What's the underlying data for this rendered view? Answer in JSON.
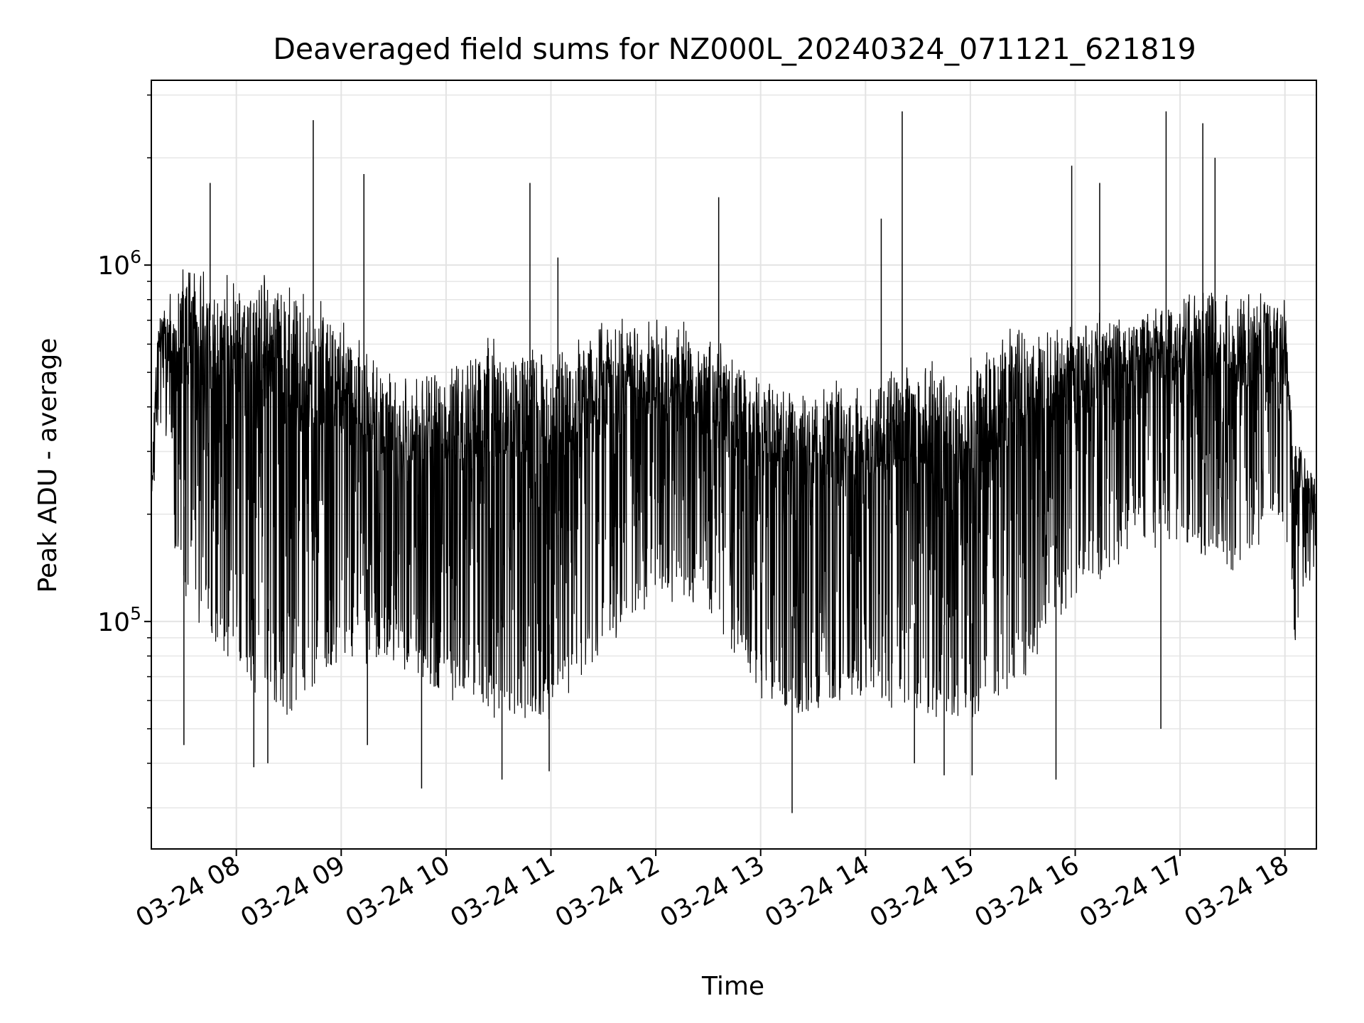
{
  "chart_data": {
    "type": "line",
    "title": "Deaveraged field sums for NZ000L_20240324_071121_621819",
    "xlabel": "Time",
    "ylabel": "Peak ADU - average",
    "yscale": "log",
    "ylim": [
      23000,
      3300000
    ],
    "xlim": [
      "2024-03-24T07:11:21",
      "2024-03-24T18:18:00"
    ],
    "grid": true,
    "x_ticks": [
      {
        "value": "2024-03-24T08:00:00",
        "label": "03-24 08"
      },
      {
        "value": "2024-03-24T09:00:00",
        "label": "03-24 09"
      },
      {
        "value": "2024-03-24T10:00:00",
        "label": "03-24 10"
      },
      {
        "value": "2024-03-24T11:00:00",
        "label": "03-24 11"
      },
      {
        "value": "2024-03-24T12:00:00",
        "label": "03-24 12"
      },
      {
        "value": "2024-03-24T13:00:00",
        "label": "03-24 13"
      },
      {
        "value": "2024-03-24T14:00:00",
        "label": "03-24 14"
      },
      {
        "value": "2024-03-24T15:00:00",
        "label": "03-24 15"
      },
      {
        "value": "2024-03-24T16:00:00",
        "label": "03-24 16"
      },
      {
        "value": "2024-03-24T17:00:00",
        "label": "03-24 17"
      },
      {
        "value": "2024-03-24T18:00:00",
        "label": "03-24 18"
      }
    ],
    "y_ticks": [
      {
        "value": 100000,
        "base": "10",
        "exp": "5"
      },
      {
        "value": 1000000,
        "base": "10",
        "exp": "6"
      }
    ],
    "series": [
      {
        "color": "#000000",
        "style": "dense noisy signal, approx values",
        "upper_envelope": [
          [
            "2024-03-24T07:11:21",
            220000
          ],
          [
            "2024-03-24T07:15:00",
            700000
          ],
          [
            "2024-03-24T07:30:00",
            900000
          ],
          [
            "2024-03-24T08:00:00",
            850000
          ],
          [
            "2024-03-24T08:30:00",
            850000
          ],
          [
            "2024-03-24T09:00:00",
            650000
          ],
          [
            "2024-03-24T09:30:00",
            450000
          ],
          [
            "2024-03-24T10:00:00",
            500000
          ],
          [
            "2024-03-24T10:30:00",
            600000
          ],
          [
            "2024-03-24T11:00:00",
            550000
          ],
          [
            "2024-03-24T11:30:00",
            650000
          ],
          [
            "2024-03-24T12:00:00",
            650000
          ],
          [
            "2024-03-24T12:30:00",
            600000
          ],
          [
            "2024-03-24T13:00:00",
            450000
          ],
          [
            "2024-03-24T13:30:00",
            420000
          ],
          [
            "2024-03-24T14:00:00",
            450000
          ],
          [
            "2024-03-24T14:30:00",
            500000
          ],
          [
            "2024-03-24T15:00:00",
            500000
          ],
          [
            "2024-03-24T15:30:00",
            650000
          ],
          [
            "2024-03-24T16:00:00",
            650000
          ],
          [
            "2024-03-24T16:30:00",
            700000
          ],
          [
            "2024-03-24T17:00:00",
            750000
          ],
          [
            "2024-03-24T17:30:00",
            800000
          ],
          [
            "2024-03-24T18:00:00",
            750000
          ],
          [
            "2024-03-24T18:05:00",
            300000
          ],
          [
            "2024-03-24T18:18:00",
            250000
          ]
        ],
        "lower_envelope": [
          [
            "2024-03-24T07:11:21",
            200000
          ],
          [
            "2024-03-24T07:15:00",
            400000
          ],
          [
            "2024-03-24T07:30:00",
            150000
          ],
          [
            "2024-03-24T08:00:00",
            90000
          ],
          [
            "2024-03-24T08:30:00",
            70000
          ],
          [
            "2024-03-24T09:00:00",
            100000
          ],
          [
            "2024-03-24T09:30:00",
            100000
          ],
          [
            "2024-03-24T10:00:00",
            80000
          ],
          [
            "2024-03-24T10:30:00",
            70000
          ],
          [
            "2024-03-24T11:00:00",
            70000
          ],
          [
            "2024-03-24T11:30:00",
            110000
          ],
          [
            "2024-03-24T12:00:00",
            150000
          ],
          [
            "2024-03-24T12:30:00",
            140000
          ],
          [
            "2024-03-24T13:00:00",
            80000
          ],
          [
            "2024-03-24T13:30:00",
            70000
          ],
          [
            "2024-03-24T14:00:00",
            80000
          ],
          [
            "2024-03-24T14:30:00",
            70000
          ],
          [
            "2024-03-24T15:00:00",
            70000
          ],
          [
            "2024-03-24T15:30:00",
            90000
          ],
          [
            "2024-03-24T16:00:00",
            150000
          ],
          [
            "2024-03-24T16:30:00",
            200000
          ],
          [
            "2024-03-24T17:00:00",
            220000
          ],
          [
            "2024-03-24T17:30:00",
            170000
          ],
          [
            "2024-03-24T18:00:00",
            250000
          ],
          [
            "2024-03-24T18:05:00",
            110000
          ],
          [
            "2024-03-24T18:18:00",
            200000
          ]
        ],
        "spikes_up": [
          [
            "2024-03-24T07:45:00",
            1700000
          ],
          [
            "2024-03-24T08:44:00",
            2550000
          ],
          [
            "2024-03-24T09:13:00",
            1800000
          ],
          [
            "2024-03-24T10:48:00",
            1700000
          ],
          [
            "2024-03-24T11:04:00",
            1050000
          ],
          [
            "2024-03-24T12:36:00",
            1550000
          ],
          [
            "2024-03-24T14:21:00",
            2700000
          ],
          [
            "2024-03-24T14:09:00",
            1350000
          ],
          [
            "2024-03-24T15:58:00",
            1900000
          ],
          [
            "2024-03-24T16:14:00",
            1700000
          ],
          [
            "2024-03-24T16:52:00",
            2700000
          ],
          [
            "2024-03-24T17:13:00",
            2500000
          ],
          [
            "2024-03-24T17:20:00",
            2000000
          ]
        ],
        "spikes_down": [
          [
            "2024-03-24T07:30:00",
            45000
          ],
          [
            "2024-03-24T08:10:00",
            39000
          ],
          [
            "2024-03-24T08:18:00",
            40000
          ],
          [
            "2024-03-24T09:15:00",
            45000
          ],
          [
            "2024-03-24T09:46:00",
            34000
          ],
          [
            "2024-03-24T10:32:00",
            36000
          ],
          [
            "2024-03-24T10:59:00",
            38000
          ],
          [
            "2024-03-24T13:18:00",
            29000
          ],
          [
            "2024-03-24T14:28:00",
            40000
          ],
          [
            "2024-03-24T14:45:00",
            37000
          ],
          [
            "2024-03-24T15:01:00",
            37000
          ],
          [
            "2024-03-24T15:49:00",
            36000
          ],
          [
            "2024-03-24T16:49:00",
            50000
          ]
        ]
      }
    ]
  }
}
